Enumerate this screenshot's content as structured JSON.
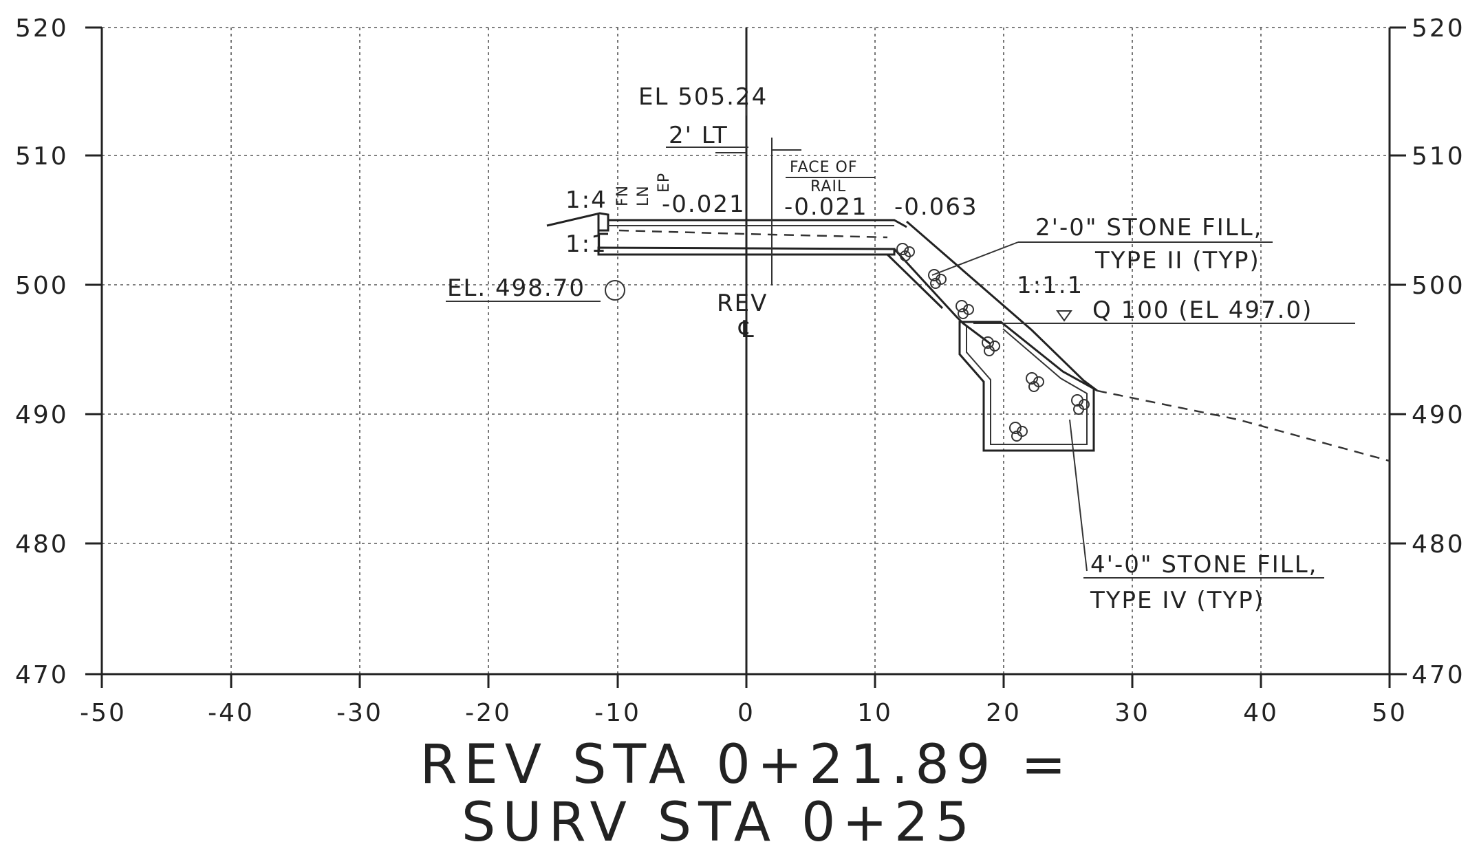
{
  "chart_data": {
    "type": "section",
    "x_ticks": [
      "-50",
      "-40",
      "-30",
      "-20",
      "-10",
      "0",
      "10",
      "20",
      "30",
      "40",
      "50"
    ],
    "y_ticks": [
      "470",
      "480",
      "490",
      "500",
      "510",
      "520"
    ],
    "xlim": [
      -50,
      50
    ],
    "ylim": [
      470,
      520
    ],
    "grid": true
  },
  "annotations": {
    "el_top": "EL 505.24",
    "offset": "2' LT",
    "face_of_rail_1": "FACE OF",
    "face_of_rail_2": "RAIL",
    "fn_ln": "FN",
    "ln": "LN",
    "ep": "EP",
    "slope_left": "-0.021",
    "slope_mid": "-0.021",
    "slope_right": "-0.063",
    "ratio_14": "1:4",
    "ratio_11": "1:1",
    "ratio_111": "1:1.1",
    "el_left": "EL. 498.70",
    "rev": "REV",
    "centerline": "℄",
    "stone2_l1": "2'-0\" STONE FILL,",
    "stone2_l2": "TYPE II (TYP)",
    "q100": "Q 100 (EL 497.0)",
    "stone4_l1": "4'-0\" STONE FILL,",
    "stone4_l2": "TYPE IV (TYP)"
  },
  "title": {
    "line1": "REV STA 0+21.89 =",
    "line2": "SURV STA 0+25"
  }
}
